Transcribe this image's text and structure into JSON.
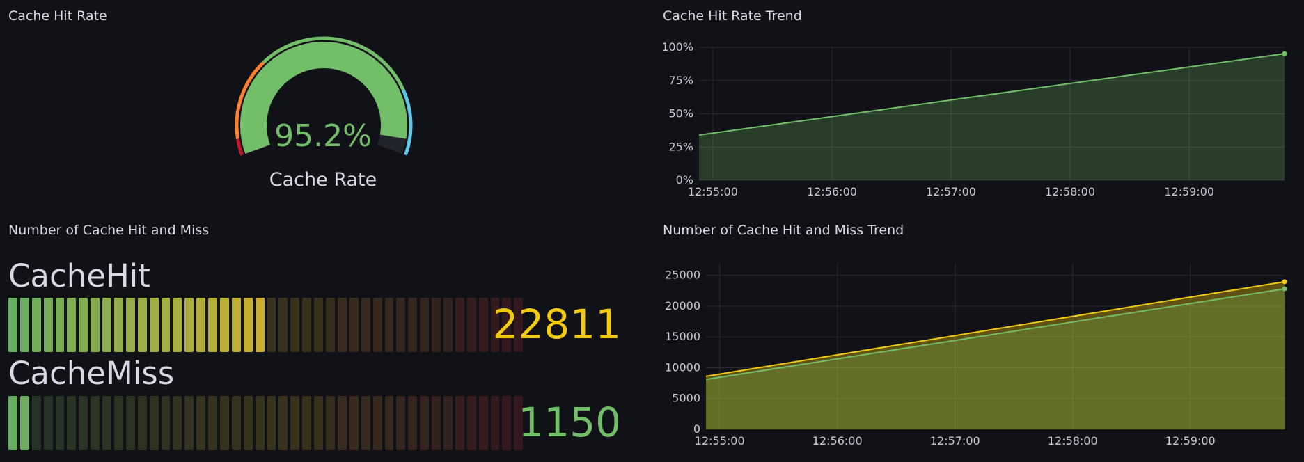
{
  "panels": {
    "gauge": {
      "title": "Cache Hit Rate",
      "value_text": "95.2%",
      "value": 95.2,
      "label": "Cache Rate",
      "color": "#73bf69",
      "thresholds": [
        {
          "to": 5,
          "color": "#c4162a"
        },
        {
          "to": 30,
          "color": "#ff7f2a"
        },
        {
          "to": 80,
          "color": "#73bf69"
        },
        {
          "to": 100,
          "color": "#5ec6e6"
        }
      ]
    },
    "hit_rate_trend": {
      "title": "Cache Hit Rate Trend"
    },
    "bar_gauge": {
      "title": "Number of Cache Hit and Miss",
      "rows": [
        {
          "name": "CacheHit",
          "value": "22811",
          "value_color": "#f2cc0c",
          "lit_cells": 22,
          "total_cells": 44
        },
        {
          "name": "CacheMiss",
          "value": "1150",
          "value_color": "#73bf69",
          "lit_cells": 2,
          "total_cells": 44
        }
      ]
    },
    "hit_miss_trend": {
      "title": "Number of Cache Hit and Miss Trend"
    }
  },
  "chart_data": [
    {
      "type": "area",
      "title": "Cache Hit Rate Trend",
      "x": [
        "12:54:53",
        "12:59:48"
      ],
      "xticks": [
        "12:55:00",
        "12:56:00",
        "12:57:00",
        "12:58:00",
        "12:59:00"
      ],
      "yticks": [
        "0%",
        "25%",
        "50%",
        "75%",
        "100%"
      ],
      "ylim": [
        0,
        100
      ],
      "grid": true,
      "series": [
        {
          "values": [
            34,
            95.2
          ],
          "color": "#73bf69"
        }
      ]
    },
    {
      "type": "area",
      "title": "Number of Cache Hit and Miss Trend",
      "x": [
        "12:54:53",
        "12:59:48"
      ],
      "xticks": [
        "12:55:00",
        "12:56:00",
        "12:57:00",
        "12:58:00",
        "12:59:00"
      ],
      "yticks": [
        "0",
        "5000",
        "10000",
        "15000",
        "20000",
        "25000"
      ],
      "ylim": [
        0,
        27000
      ],
      "grid": true,
      "series": [
        {
          "values": [
            8600,
            23961
          ],
          "color": "#f2cc0c"
        },
        {
          "values": [
            8100,
            22811
          ],
          "color": "#73bf69"
        }
      ]
    }
  ]
}
